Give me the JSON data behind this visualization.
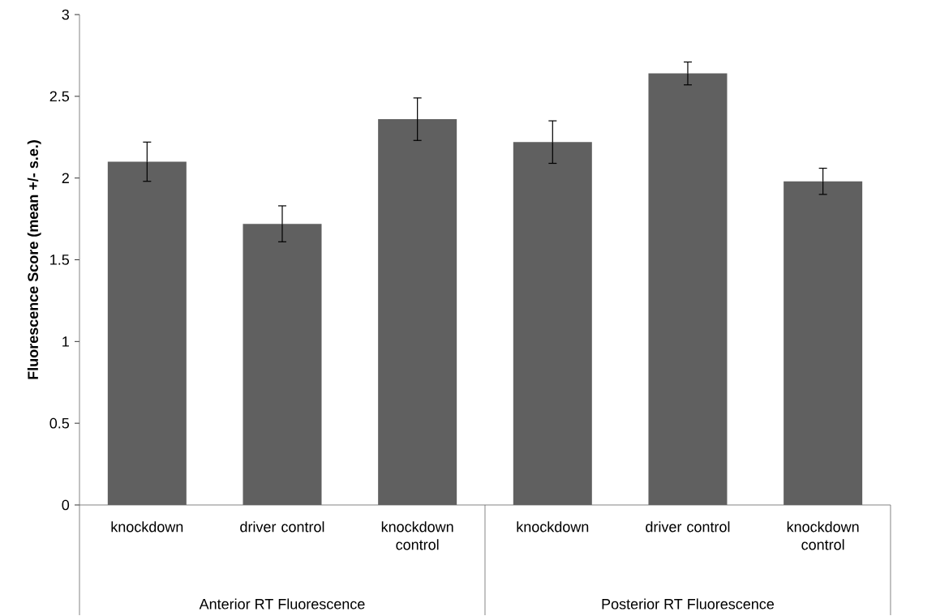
{
  "chart_data": {
    "type": "bar",
    "ylabel": "Fluorescence Score (mean +/- s.e.)",
    "categories": [
      "knockdown",
      "driver control",
      "knockdown control",
      "knockdown",
      "driver control",
      "knockdown control"
    ],
    "values": [
      2.1,
      1.72,
      2.36,
      2.22,
      2.64,
      1.98
    ],
    "errors": [
      0.12,
      0.11,
      0.13,
      0.13,
      0.07,
      0.08
    ],
    "color": "#606060",
    "ylim": [
      0,
      3
    ],
    "yticks": [
      0,
      0.5,
      1,
      1.5,
      2,
      2.5,
      3
    ],
    "grid": false,
    "annotations": [
      "Anterior RT Fluorescence",
      "Posterior RT Fluorescence"
    ]
  }
}
